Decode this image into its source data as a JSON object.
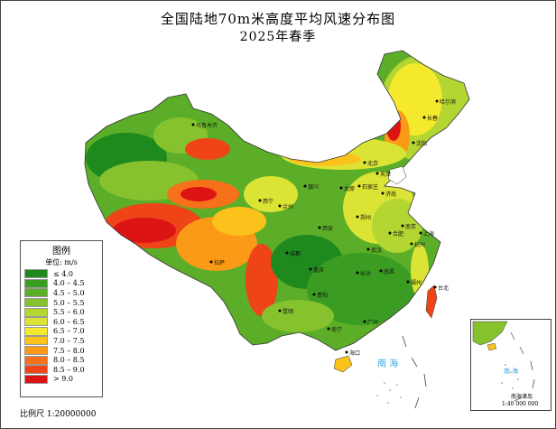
{
  "title": "全国陆地70m米高度平均风速分布图",
  "subtitle": "2025年春季",
  "legend": {
    "title": "图例",
    "unit": "单位: m/s",
    "items": [
      {
        "label": "≤ 4.0",
        "color": "#1e8a1e"
      },
      {
        "label": "4.0 – 4.5",
        "color": "#3a9c22"
      },
      {
        "label": "4.5 – 5.0",
        "color": "#5cae28"
      },
      {
        "label": "5.0 – 5.5",
        "color": "#86c22e"
      },
      {
        "label": "5.5 – 6.0",
        "color": "#b4d632"
      },
      {
        "label": "6.0 – 6.5",
        "color": "#dbe434"
      },
      {
        "label": "6.5 – 7.0",
        "color": "#f5e92e"
      },
      {
        "label": "7.0 – 7.5",
        "color": "#fcc21c"
      },
      {
        "label": "7.5 – 8.0",
        "color": "#fb9a16"
      },
      {
        "label": "8.0 – 8.5",
        "color": "#f7701a"
      },
      {
        "label": "8.5 – 9.0",
        "color": "#ee4418"
      },
      {
        "label": "> 9.0",
        "color": "#dd1414"
      }
    ]
  },
  "scale_text": "比例尺 1:20000000",
  "sea_label": "南 海",
  "inset": {
    "sea_label": "南 海",
    "islands_label": "南海诸岛",
    "scale": "1:40 000 000"
  },
  "cities": [
    {
      "name": "哈尔滨"
    },
    {
      "name": "长春"
    },
    {
      "name": "沈阳"
    },
    {
      "name": "北京"
    },
    {
      "name": "天津"
    },
    {
      "name": "石家庄"
    },
    {
      "name": "济南"
    },
    {
      "name": "太原"
    },
    {
      "name": "郑州"
    },
    {
      "name": "西安"
    },
    {
      "name": "银川"
    },
    {
      "name": "兰州"
    },
    {
      "name": "西宁"
    },
    {
      "name": "乌鲁木齐"
    },
    {
      "name": "拉萨"
    },
    {
      "name": "成都"
    },
    {
      "name": "重庆"
    },
    {
      "name": "武汉"
    },
    {
      "name": "合肥"
    },
    {
      "name": "南京"
    },
    {
      "name": "上海"
    },
    {
      "name": "杭州"
    },
    {
      "name": "南昌"
    },
    {
      "name": "长沙"
    },
    {
      "name": "福州"
    },
    {
      "name": "台北"
    },
    {
      "name": "广州"
    },
    {
      "name": "南宁"
    },
    {
      "name": "贵阳"
    },
    {
      "name": "昆明"
    },
    {
      "name": "海口"
    }
  ]
}
